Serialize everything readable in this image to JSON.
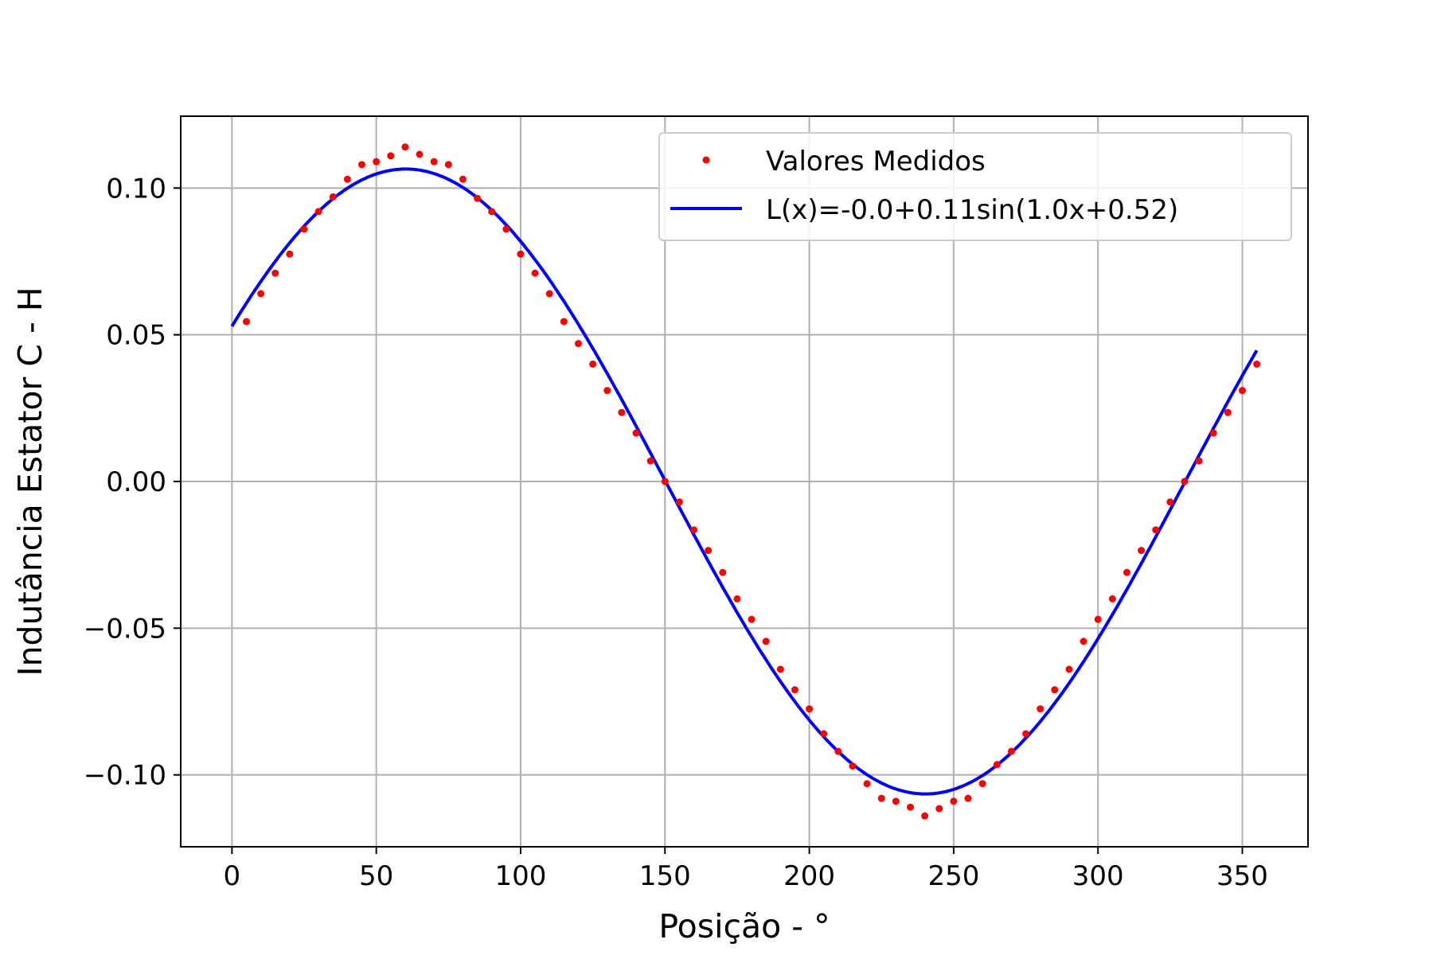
{
  "chart_data": {
    "type": "scatter",
    "xlabel": "Posição - °",
    "ylabel": "Indutância Estator C - H",
    "xlim": [
      -17.75,
      372.75
    ],
    "ylim": [
      -0.1245,
      0.1245
    ],
    "grid": true,
    "legend_position": "top-right",
    "x_ticks": [
      0,
      50,
      100,
      150,
      200,
      250,
      300,
      350
    ],
    "x_tick_labels": [
      "0",
      "50",
      "100",
      "150",
      "200",
      "250",
      "300",
      "350"
    ],
    "y_ticks": [
      0.1,
      0.05,
      0.0,
      -0.05,
      -0.1
    ],
    "y_tick_labels": [
      "0.10",
      "0.05",
      "0.00",
      "−0.05",
      "−0.10"
    ],
    "series": [
      {
        "name": "Valores Medidos",
        "kind": "scatter",
        "color": "#ff0000",
        "x": [
          5,
          10,
          15,
          20,
          25,
          30,
          35,
          40,
          45,
          50,
          55,
          60,
          65,
          70,
          75,
          80,
          85,
          90,
          95,
          100,
          105,
          110,
          115,
          120,
          125,
          130,
          135,
          140,
          145,
          150,
          155,
          160,
          165,
          170,
          175,
          180,
          185,
          190,
          195,
          200,
          205,
          210,
          215,
          220,
          225,
          230,
          235,
          240,
          245,
          250,
          255,
          260,
          265,
          270,
          275,
          280,
          285,
          290,
          295,
          300,
          305,
          310,
          315,
          320,
          325,
          330,
          335,
          340,
          345,
          350,
          355
        ],
        "y": [
          0.0545,
          0.064,
          0.071,
          0.0775,
          0.086,
          0.092,
          0.097,
          0.103,
          0.108,
          0.109,
          0.111,
          0.114,
          0.1115,
          0.109,
          0.108,
          0.103,
          0.0965,
          0.092,
          0.086,
          0.0775,
          0.071,
          0.064,
          0.0545,
          0.047,
          0.04,
          0.031,
          0.0235,
          0.0165,
          0.007,
          0.0,
          -0.007,
          -0.0165,
          -0.0235,
          -0.031,
          -0.04,
          -0.047,
          -0.0545,
          -0.064,
          -0.071,
          -0.0775,
          -0.086,
          -0.092,
          -0.097,
          -0.103,
          -0.108,
          -0.109,
          -0.111,
          -0.114,
          -0.1115,
          -0.109,
          -0.108,
          -0.103,
          -0.0965,
          -0.092,
          -0.086,
          -0.0775,
          -0.071,
          -0.064,
          -0.0545,
          -0.047,
          -0.04,
          -0.031,
          -0.0235,
          -0.0165,
          -0.007,
          0.0,
          0.007,
          0.0165,
          0.0235,
          0.031,
          0.04
        ]
      },
      {
        "name": "L(x)=-0.0+0.11sin(1.0x+0.52)",
        "kind": "line",
        "color": "#0000ff",
        "x_range": [
          0,
          355
        ],
        "amplitude": 0.1065,
        "phase_rad": 0.52
      }
    ]
  }
}
